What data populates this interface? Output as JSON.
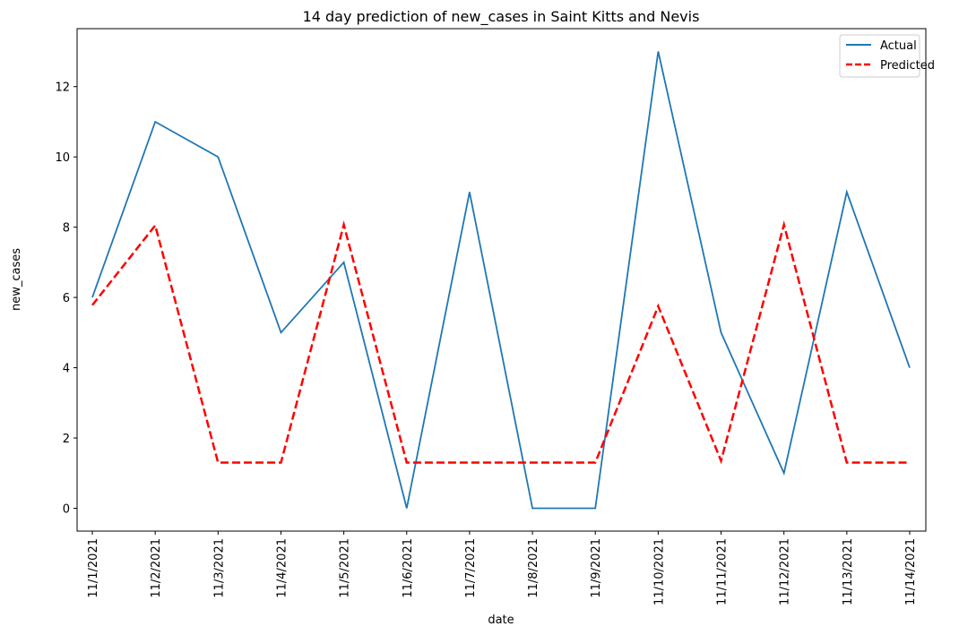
{
  "chart_data": {
    "type": "line",
    "title": "14 day prediction of new_cases in Saint Kitts and Nevis",
    "xlabel": "date",
    "ylabel": "new_cases",
    "categories": [
      "11/1/2021",
      "11/2/2021",
      "11/3/2021",
      "11/4/2021",
      "11/5/2021",
      "11/6/2021",
      "11/7/2021",
      "11/8/2021",
      "11/9/2021",
      "11/10/2021",
      "11/11/2021",
      "11/12/2021",
      "11/13/2021",
      "11/14/2021"
    ],
    "yticks": [
      0,
      2,
      4,
      6,
      8,
      10,
      12
    ],
    "ylim": [
      -0.65,
      13.65
    ],
    "legend_position": "top-right",
    "grid": false,
    "series": [
      {
        "name": "Actual",
        "color": "#1f77b4",
        "style": "solid",
        "values": [
          6,
          11,
          10,
          5,
          7,
          0,
          9,
          0,
          0,
          13,
          5,
          1,
          9,
          4
        ]
      },
      {
        "name": "Predicted",
        "color": "#ff0000",
        "style": "dashed",
        "values": [
          5.78,
          8.05,
          1.3,
          1.3,
          8.07,
          1.3,
          1.3,
          1.3,
          1.3,
          5.75,
          1.35,
          8.07,
          1.3,
          1.3
        ]
      }
    ]
  }
}
